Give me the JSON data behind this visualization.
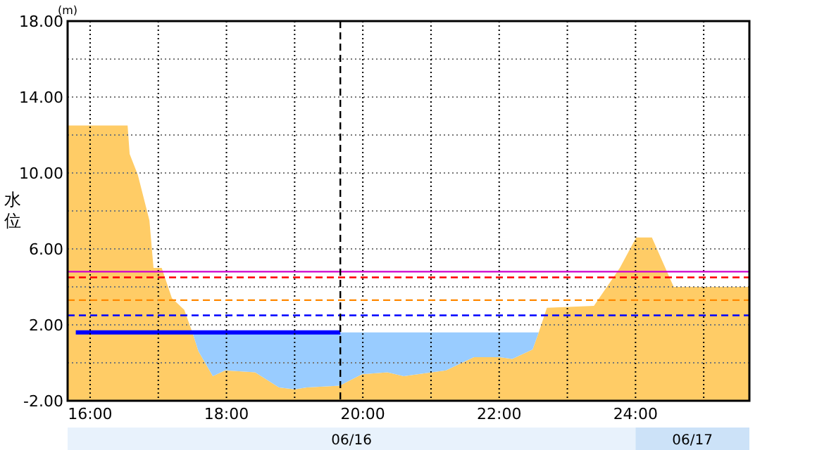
{
  "chart_data": {
    "type": "area",
    "ylabel": "水位",
    "annotations": [
      "(m)",
      "06/16",
      "06/17"
    ],
    "xlim": [
      15.67,
      25.67
    ],
    "xticks": [
      {
        "value": 16,
        "label": "16:00"
      },
      {
        "value": 17,
        "label": null
      },
      {
        "value": 18,
        "label": "18:00"
      },
      {
        "value": 19,
        "label": null
      },
      {
        "value": 20,
        "label": "20:00"
      },
      {
        "value": 21,
        "label": null
      },
      {
        "value": 22,
        "label": "22:00"
      },
      {
        "value": 23,
        "label": null
      },
      {
        "value": 24,
        "label": "24:00"
      },
      {
        "value": 25,
        "label": null
      }
    ],
    "ylim": [
      -2,
      18
    ],
    "yticks": [
      {
        "value": -2,
        "label": "-2.00"
      },
      {
        "value": 0,
        "label": null
      },
      {
        "value": 2,
        "label": "2.00"
      },
      {
        "value": 4,
        "label": null
      },
      {
        "value": 6,
        "label": "6.00"
      },
      {
        "value": 8,
        "label": null
      },
      {
        "value": 10,
        "label": "10.00"
      },
      {
        "value": 12,
        "label": null
      },
      {
        "value": 14,
        "label": "14.00"
      },
      {
        "value": 16,
        "label": null
      },
      {
        "value": 18,
        "label": "18.00"
      }
    ],
    "grid": true,
    "stacked": true,
    "x": [
      15.67,
      16.55,
      16.58,
      16.7,
      16.87,
      16.93,
      17.05,
      17.2,
      17.38,
      17.5,
      17.59,
      17.8,
      17.98,
      18.42,
      18.77,
      19.0,
      19.18,
      19.66,
      19.99,
      20.36,
      20.6,
      21.01,
      21.22,
      21.63,
      22.01,
      22.19,
      22.49,
      22.58,
      22.7,
      23.39,
      23.77,
      24.01,
      24.24,
      24.56,
      25.67
    ],
    "series": [
      {
        "color": "#ffcc66",
        "values": [
          12.5,
          12.5,
          11.0,
          9.9,
          7.5,
          5.0,
          5.0,
          3.4,
          2.8,
          1.6,
          0.6,
          -0.7,
          -0.4,
          -0.5,
          -1.3,
          -1.4,
          -1.3,
          -1.2,
          -0.6,
          -0.5,
          -0.7,
          -0.5,
          -0.4,
          0.3,
          0.3,
          0.2,
          0.7,
          1.6,
          2.9,
          3.0,
          5.0,
          6.6,
          6.6,
          4.0,
          4.0
        ]
      },
      {
        "color": "#99ccff",
        "values": [
          null,
          null,
          null,
          null,
          null,
          null,
          null,
          null,
          null,
          0,
          1.0,
          2.3,
          2.0,
          2.1,
          2.9,
          3.0,
          2.9,
          2.8,
          2.2,
          2.1,
          2.3,
          2.1,
          2.0,
          1.3,
          1.3,
          1.4,
          0.9,
          0,
          null,
          null,
          null,
          null,
          null,
          null,
          null
        ]
      },
      {
        "type": "line",
        "color": "#0000ff",
        "x": [
          15.79,
          19.67
        ],
        "values": [
          1.6,
          1.6
        ]
      }
    ],
    "ref_lines": [
      {
        "axis": "y",
        "value": 4.8,
        "color": "#cc00cc",
        "line_style": "solid"
      },
      {
        "axis": "y",
        "value": 4.5,
        "color": "#ff0000",
        "line_style": "dashed"
      },
      {
        "axis": "y",
        "value": 3.3,
        "color": "#ff8800",
        "line_style": "dashed"
      },
      {
        "axis": "y",
        "value": 2.5,
        "color": "#0000ff",
        "line_style": "dashed"
      },
      {
        "axis": "x",
        "value": 19.67,
        "color": "#000000",
        "line_style": "dashed"
      }
    ]
  }
}
